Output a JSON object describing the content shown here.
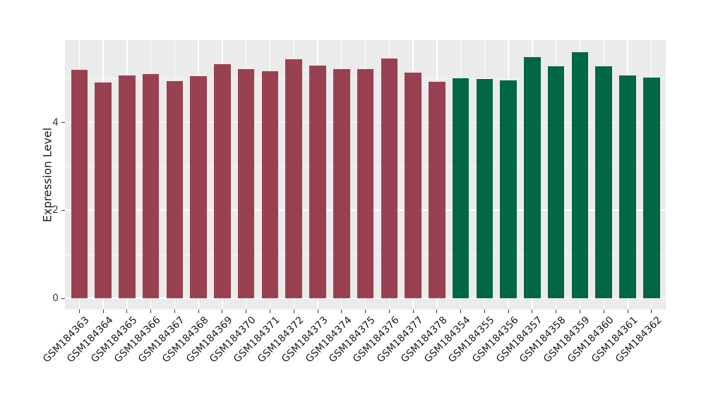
{
  "chart_data": {
    "type": "bar",
    "title": "",
    "xlabel": "",
    "ylabel": "Expression Level",
    "ylim": [
      0,
      5.9
    ],
    "yticks": [
      0,
      2,
      4
    ],
    "yticks_minor": [
      1,
      3,
      5
    ],
    "grid": true,
    "legend_position": "none",
    "panel_background": "#ebebeb",
    "gridline_color": "#ffffff",
    "series": [
      {
        "name": "dark-red-group",
        "color": "#9a4151",
        "categories": [
          "GSM184363",
          "GSM184364",
          "GSM184365",
          "GSM184366",
          "GSM184367",
          "GSM184368",
          "GSM184369",
          "GSM184370",
          "GSM184371",
          "GSM184372",
          "GSM184373",
          "GSM184374",
          "GSM184375",
          "GSM184376",
          "GSM184377",
          "GSM184378"
        ],
        "values": [
          5.19,
          4.9,
          5.07,
          5.1,
          4.94,
          5.05,
          5.32,
          5.21,
          5.17,
          5.43,
          5.29,
          5.21,
          5.21,
          5.45,
          5.13,
          4.93
        ]
      },
      {
        "name": "green-group",
        "color": "#026746",
        "categories": [
          "GSM184354",
          "GSM184355",
          "GSM184356",
          "GSM184357",
          "GSM184358",
          "GSM184359",
          "GSM184360",
          "GSM184361",
          "GSM184362"
        ],
        "values": [
          5.0,
          4.99,
          4.95,
          5.48,
          5.27,
          5.6,
          5.27,
          5.07,
          5.02
        ]
      }
    ]
  }
}
